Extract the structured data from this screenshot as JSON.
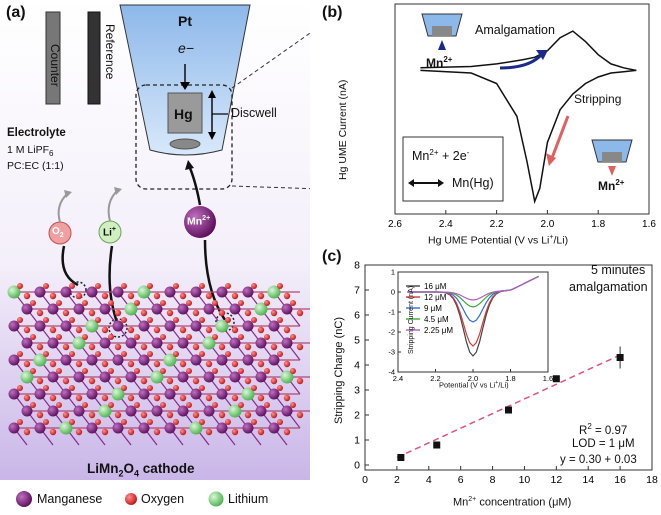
{
  "panel_a": {
    "label": "(a)",
    "electrode_counter": "Counter",
    "electrode_reference": "Reference",
    "tip_pt": "Pt",
    "tip_electron": "e−",
    "tip_hg": "Hg",
    "discwell": "Discwell",
    "electrolyte_title": "Electrolyte",
    "electrolyte_line1": "1 M LiPF6",
    "electrolyte_line2": "PC:EC (1:1)",
    "ion_o2": "O2",
    "ion_li": "Li+",
    "ion_mn": "Mn2+",
    "cathode_label": "LiMn2O4 cathode",
    "legend": [
      "Manganese",
      "Oxygen",
      "Lithium"
    ],
    "colors": {
      "manganese": "#7a1a7a",
      "oxygen": "#e02020",
      "lithium": "#6ad06a",
      "bg_top": "#ffffff",
      "bg_bottom": "#c9b6e8"
    }
  },
  "panel_b": {
    "label": "(b)",
    "amalgamation": "Amalgamation",
    "stripping": "Stripping",
    "mn_top": "Mn2+",
    "mn_bottom": "Mn2+",
    "reaction_line1": "Mn2+ + 2e-",
    "reaction_line2": "Mn(Hg)",
    "colors": {
      "amalgamation": "#1a2a8a",
      "stripping": "#e06060"
    }
  },
  "panel_c": {
    "label": "(c)",
    "note_line1": "5 minutes",
    "note_line2": "amalgamation",
    "r2": "R2 = 0.97",
    "lod": "LOD = 1 μM",
    "fit": "y = 0.30 + 0.03"
  },
  "chart_data": [
    {
      "type": "line",
      "panel": "(b)",
      "xlabel": "Hg UME Potential (V vs Li+/Li)",
      "ylabel": "Hg UME Current (nA)",
      "xlim": [
        2.6,
        1.6
      ],
      "xticks": [
        "2.6",
        "2.4",
        "2.2",
        "2.0",
        "1.8",
        "1.6"
      ],
      "series": [
        {
          "values_x": [
            2.5,
            2.3,
            2.2,
            2.12,
            2.08,
            2.06,
            2.05,
            2.03,
            2.0,
            1.95,
            1.9,
            1.85,
            1.8,
            1.75,
            1.7,
            1.65
          ],
          "values_y": [
            0.0,
            -0.02,
            -0.1,
            -0.35,
            -0.7,
            -0.9,
            -1.0,
            -0.9,
            -0.55,
            -0.3,
            -0.18,
            -0.1,
            -0.05,
            -0.02,
            -0.01,
            0.0
          ]
        },
        {
          "values_x": [
            1.65,
            1.7,
            1.75,
            1.8,
            1.85,
            1.9,
            1.95,
            2.0,
            2.05,
            2.1,
            2.2,
            2.3,
            2.5
          ],
          "values_y": [
            0.0,
            0.02,
            0.05,
            0.12,
            0.22,
            0.3,
            0.25,
            0.15,
            0.1,
            0.08,
            0.05,
            0.03,
            0.02
          ]
        }
      ]
    },
    {
      "type": "scatter",
      "panel": "(c)",
      "xlabel": "Mn2+ concentration (μM)",
      "ylabel": "Stripping Charge (nC)",
      "xlim": [
        0,
        18
      ],
      "ylim": [
        -0.2,
        8
      ],
      "xticks": [
        "0",
        "2",
        "4",
        "6",
        "8",
        "10",
        "12",
        "14",
        "16",
        "18"
      ],
      "yticks": [
        "0",
        "1",
        "2",
        "3",
        "4",
        "5",
        "6",
        "7",
        "8"
      ],
      "x": [
        2.25,
        4.5,
        9,
        12,
        16
      ],
      "y": [
        0.3,
        0.8,
        2.2,
        3.45,
        4.3
      ],
      "fit_line": {
        "x": [
          2,
          16
        ],
        "y": [
          0.3,
          4.4
        ]
      }
    },
    {
      "type": "line",
      "panel": "(c) inset",
      "xlabel": "Potential (V vs Li+/Li)",
      "ylabel": "Stripping Current (nA)",
      "xlim": [
        2.4,
        1.6
      ],
      "ylim": [
        -4,
        1
      ],
      "xticks": [
        "2.4",
        "2.2",
        "2.0",
        "1.8",
        "1.6"
      ],
      "yticks": [
        "1",
        "0",
        "-1",
        "-2",
        "-3",
        "-4"
      ],
      "series": [
        {
          "name": "16 μM",
          "color": "#444444",
          "peak": -3.2
        },
        {
          "name": "12 μM",
          "color": "#d63a3a",
          "peak": -2.7
        },
        {
          "name": "9 μM",
          "color": "#2a6fd6",
          "peak": -1.5
        },
        {
          "name": "4.5 μM",
          "color": "#3aaa3a",
          "peak": -0.75
        },
        {
          "name": "2.25 μM",
          "color": "#b060c0",
          "peak": -0.4
        }
      ]
    }
  ]
}
